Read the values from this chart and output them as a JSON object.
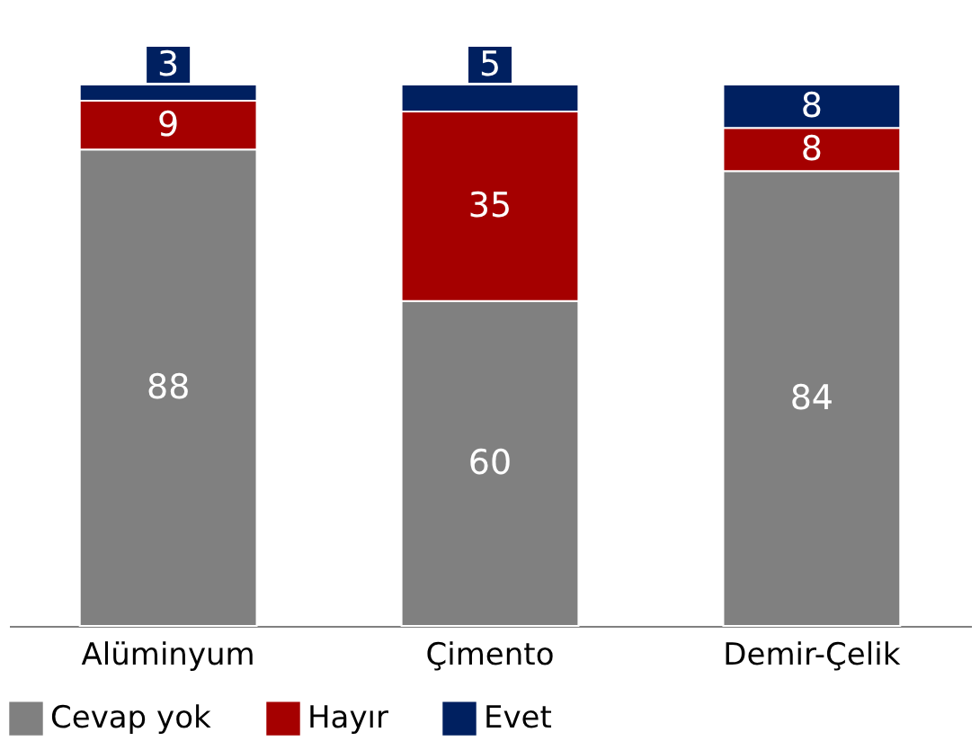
{
  "chart_data": {
    "type": "bar",
    "stacked": true,
    "data_labels": true,
    "grid": false,
    "legend": "bottom",
    "tick_labels": "x",
    "categories": [
      "Alüminyum",
      "Çimento",
      "Demir-Çelik"
    ],
    "series": [
      {
        "name": "Cevap yok",
        "color": "#808080",
        "values": [
          88,
          60,
          84
        ]
      },
      {
        "name": "Hayır",
        "color": "#a50000",
        "values": [
          9,
          35,
          8
        ]
      },
      {
        "name": "Evet",
        "color": "#002060",
        "values": [
          3,
          5,
          8
        ]
      }
    ]
  }
}
